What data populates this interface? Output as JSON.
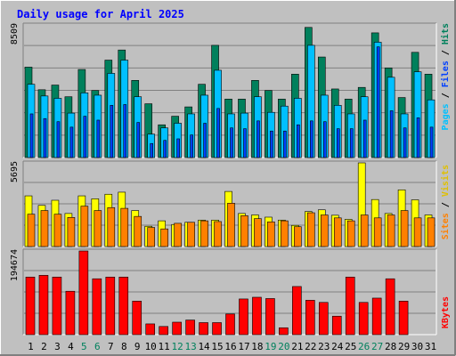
{
  "chart_data": {
    "type": "bar",
    "title": "Daily usage for April 2025",
    "days": [
      "1",
      "2",
      "3",
      "4",
      "5",
      "6",
      "7",
      "8",
      "9",
      "10",
      "11",
      "12",
      "13",
      "14",
      "15",
      "16",
      "17",
      "18",
      "19",
      "20",
      "21",
      "22",
      "23",
      "24",
      "25",
      "26",
      "27",
      "28",
      "29",
      "30",
      "31"
    ],
    "weekend_days": [
      "5",
      "6",
      "12",
      "13",
      "19",
      "20",
      "26",
      "27"
    ],
    "panels": {
      "traffic": {
        "max_label": "8509",
        "ylim": [
          0,
          8509
        ],
        "axis_labels": {
          "pages": "Pages",
          "files": "Files",
          "hits": "Hits",
          "sep": " / "
        },
        "series": [
          {
            "name": "Hits",
            "values": [
              5800,
              4350,
              4650,
              3900,
              5650,
              4300,
              6250,
              6900,
              4950,
              3450,
              2100,
              2650,
              3250,
              4700,
              7200,
              3750,
              3750,
              4950,
              4300,
              3750,
              5350,
              8350,
              6450,
              4400,
              3750,
              4500,
              8000,
              5750,
              3850,
              6750,
              5350
            ]
          },
          {
            "name": "Files",
            "values": [
              4700,
              3950,
              3800,
              2850,
              4150,
              4000,
              5400,
              6250,
              3900,
              1500,
              1900,
              2200,
              2800,
              4000,
              5600,
              2800,
              2850,
              3900,
              2900,
              3300,
              3800,
              7200,
              4000,
              3350,
              2800,
              3900,
              7400,
              5150,
              2800,
              5500,
              3700
            ]
          },
          {
            "name": "Pages",
            "values": [
              2800,
              2500,
              2300,
              1950,
              2650,
              2400,
              3350,
              3400,
              2250,
              900,
              1100,
              1200,
              1450,
              2200,
              3150,
              1900,
              1850,
              2350,
              1700,
              1700,
              2100,
              2350,
              2300,
              1850,
              1850,
              2400,
              7100,
              3000,
              1900,
              2550,
              1950
            ]
          }
        ]
      },
      "visitors": {
        "max_label": "5695",
        "ylim": [
          0,
          5695
        ],
        "axis_labels": {
          "sites": "Sites",
          "visits": "Visits",
          "sep": " / "
        },
        "series": [
          {
            "name": "Visits",
            "values": [
              3450,
              2800,
              3150,
              2250,
              3450,
              3250,
              3560,
              3700,
              2450,
              1380,
              1750,
              1500,
              1650,
              1800,
              1800,
              3750,
              2250,
              2150,
              2000,
              1800,
              1440,
              2380,
              2500,
              2130,
              1850,
              5695,
              3200,
              2250,
              3860,
              3180,
              2150
            ]
          },
          {
            "name": "Sites",
            "values": [
              2200,
              2450,
              2200,
              1980,
              2750,
              2450,
              2650,
              2600,
              2050,
              1300,
              1200,
              1580,
              1650,
              1750,
              1700,
              2950,
              2100,
              1900,
              1680,
              1750,
              1350,
              2300,
              2150,
              1950,
              1750,
              2150,
              1950,
              2150,
              2450,
              1950,
              1950
            ]
          }
        ]
      },
      "volume": {
        "max_label": "194674",
        "ylim": [
          0,
          194674
        ],
        "axis_labels": {
          "kbytes": "KBytes"
        },
        "series": [
          {
            "name": "KBytes",
            "values": [
              134000,
              138000,
              134000,
              101000,
              194674,
              130000,
              134000,
              134000,
              78000,
              25000,
              19000,
              29000,
              34000,
              28000,
              28000,
              48000,
              83000,
              87000,
              84000,
              16000,
              112000,
              80000,
              75000,
              43000,
              134000,
              75000,
              85000,
              130000,
              78000,
              0,
              0
            ]
          }
        ]
      }
    },
    "colors": {
      "hits": "#00805c",
      "files": "#00c0ff",
      "pages": "#0040ff",
      "visits": "#ffff00",
      "sites": "#ff8000",
      "kbytes": "#ff0000",
      "title": "#0000ff",
      "weekend": "#00805c",
      "weekday": "#000000"
    }
  }
}
